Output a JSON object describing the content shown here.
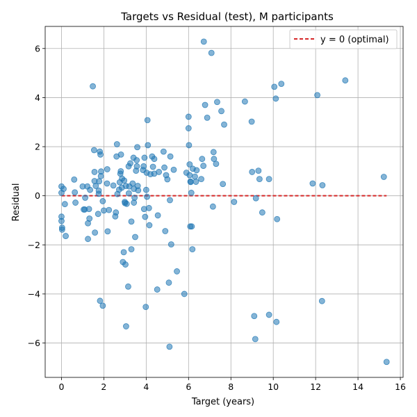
{
  "chart_data": {
    "type": "scatter",
    "title": "Targets vs Residual (test), M participants",
    "xlabel": "Target (years)",
    "ylabel": "Residual",
    "xlim": [
      -0.77,
      16.13
    ],
    "ylim": [
      -7.4,
      6.9
    ],
    "xticks": [
      0,
      2,
      4,
      6,
      8,
      10,
      12,
      14,
      16
    ],
    "yticks": [
      -6,
      -4,
      -2,
      0,
      2,
      4,
      6
    ],
    "grid": true,
    "legend": {
      "position": "top-right",
      "entries": [
        "y = 0 (optimal)"
      ]
    },
    "colors": {
      "points": "#1f77b4",
      "reference": "#d62728"
    },
    "reference_line": {
      "label": "y = 0 (optimal)",
      "y": 0,
      "x": [
        0,
        15.35
      ],
      "style": "dashed"
    },
    "series": [
      {
        "name": "residuals",
        "points": [
          [
            0.0,
            0.38
          ],
          [
            0.0,
            0.12
          ],
          [
            0.0,
            -0.85
          ],
          [
            0.0,
            -1.03
          ],
          [
            0.03,
            -1.3
          ],
          [
            0.03,
            -1.38
          ],
          [
            0.1,
            0.28
          ],
          [
            0.16,
            -0.34
          ],
          [
            0.2,
            -1.64
          ],
          [
            0.6,
            0.66
          ],
          [
            0.63,
            0.14
          ],
          [
            0.66,
            -0.28
          ],
          [
            1.0,
            0.38
          ],
          [
            1.05,
            -0.56
          ],
          [
            1.1,
            -0.56
          ],
          [
            1.12,
            -0.08
          ],
          [
            1.22,
            0.38
          ],
          [
            1.25,
            -1.12
          ],
          [
            1.25,
            -1.76
          ],
          [
            1.3,
            -0.54
          ],
          [
            1.32,
            -0.93
          ],
          [
            1.35,
            0.24
          ],
          [
            1.48,
            4.46
          ],
          [
            1.54,
            1.86
          ],
          [
            1.56,
            0.6
          ],
          [
            1.56,
            0.97
          ],
          [
            1.58,
            -1.5
          ],
          [
            1.62,
            0.4
          ],
          [
            1.73,
            -0.74
          ],
          [
            1.76,
            0.08
          ],
          [
            1.76,
            0.21
          ],
          [
            1.78,
            0.59
          ],
          [
            1.81,
            1.8
          ],
          [
            1.82,
            -4.28
          ],
          [
            1.84,
            1.68
          ],
          [
            1.86,
            0.8
          ],
          [
            1.87,
            0.99
          ],
          [
            1.95,
            -4.48
          ],
          [
            1.95,
            -0.22
          ],
          [
            2.0,
            -0.6
          ],
          [
            2.15,
            0.5
          ],
          [
            2.16,
            1.08
          ],
          [
            2.18,
            -1.45
          ],
          [
            2.24,
            -0.58
          ],
          [
            2.45,
            0.42
          ],
          [
            2.54,
            -0.84
          ],
          [
            2.57,
            -0.68
          ],
          [
            2.6,
            1.6
          ],
          [
            2.62,
            2.1
          ],
          [
            2.64,
            0.07
          ],
          [
            2.72,
            0.25
          ],
          [
            2.75,
            0.55
          ],
          [
            2.78,
            0.9
          ],
          [
            2.8,
            1.0
          ],
          [
            2.81,
            1.68
          ],
          [
            2.85,
            0.33
          ],
          [
            2.86,
            0.7
          ],
          [
            2.9,
            -2.7
          ],
          [
            2.94,
            -2.3
          ],
          [
            2.96,
            0.62
          ],
          [
            2.99,
            -0.25
          ],
          [
            3.0,
            -0.3
          ],
          [
            3.02,
            -2.8
          ],
          [
            3.04,
            0.4
          ],
          [
            3.05,
            -5.32
          ],
          [
            3.08,
            -0.33
          ],
          [
            3.15,
            -3.7
          ],
          [
            3.17,
            1.2
          ],
          [
            3.18,
            0.1
          ],
          [
            3.2,
            0.38
          ],
          [
            3.25,
            1.32
          ],
          [
            3.3,
            -1.05
          ],
          [
            3.3,
            -2.18
          ],
          [
            3.36,
            0.5
          ],
          [
            3.4,
            1.55
          ],
          [
            3.42,
            0.28
          ],
          [
            3.42,
            -0.28
          ],
          [
            3.45,
            -0.08
          ],
          [
            3.48,
            -1.68
          ],
          [
            3.52,
            1.02
          ],
          [
            3.55,
            1.45
          ],
          [
            3.56,
            1.2
          ],
          [
            3.58,
            1.98
          ],
          [
            3.6,
            0.4
          ],
          [
            3.62,
            0.22
          ],
          [
            3.85,
            1.05
          ],
          [
            3.88,
            1.2
          ],
          [
            3.9,
            -0.54
          ],
          [
            3.92,
            1.55
          ],
          [
            3.95,
            -0.86
          ],
          [
            3.98,
            -4.53
          ],
          [
            4.0,
            0.24
          ],
          [
            4.02,
            0.94
          ],
          [
            4.04,
            -0.04
          ],
          [
            4.06,
            3.08
          ],
          [
            4.08,
            2.06
          ],
          [
            4.13,
            -0.5
          ],
          [
            4.15,
            -1.2
          ],
          [
            4.2,
            0.88
          ],
          [
            4.28,
            1.6
          ],
          [
            4.32,
            1.18
          ],
          [
            4.38,
            1.5
          ],
          [
            4.38,
            0.9
          ],
          [
            4.52,
            -3.82
          ],
          [
            4.55,
            -0.8
          ],
          [
            4.6,
            0.97
          ],
          [
            4.82,
            1.8
          ],
          [
            4.86,
            1.15
          ],
          [
            4.9,
            -1.44
          ],
          [
            4.94,
            0.84
          ],
          [
            5.0,
            0.67
          ],
          [
            5.07,
            -3.54
          ],
          [
            5.1,
            -6.15
          ],
          [
            5.12,
            -0.18
          ],
          [
            5.14,
            1.6
          ],
          [
            5.18,
            -1.98
          ],
          [
            5.3,
            1.06
          ],
          [
            5.45,
            -3.08
          ],
          [
            5.8,
            -4.0
          ],
          [
            5.9,
            0.94
          ],
          [
            6.0,
            3.22
          ],
          [
            6.0,
            2.75
          ],
          [
            6.02,
            2.06
          ],
          [
            6.05,
            1.28
          ],
          [
            6.05,
            0.84
          ],
          [
            6.08,
            -1.25
          ],
          [
            6.09,
            0.58
          ],
          [
            6.1,
            0.56
          ],
          [
            6.13,
            0.12
          ],
          [
            6.15,
            -1.25
          ],
          [
            6.18,
            -2.18
          ],
          [
            6.2,
            1.1
          ],
          [
            6.3,
            0.78
          ],
          [
            6.35,
            0.57
          ],
          [
            6.38,
            1.04
          ],
          [
            6.6,
            0.68
          ],
          [
            6.64,
            1.5
          ],
          [
            6.7,
            1.22
          ],
          [
            6.72,
            6.28
          ],
          [
            6.78,
            3.7
          ],
          [
            6.88,
            3.18
          ],
          [
            7.08,
            5.82
          ],
          [
            7.15,
            -0.44
          ],
          [
            7.18,
            1.78
          ],
          [
            7.2,
            1.5
          ],
          [
            7.3,
            1.3
          ],
          [
            7.35,
            3.82
          ],
          [
            7.55,
            3.45
          ],
          [
            7.62,
            0.48
          ],
          [
            7.68,
            2.9
          ],
          [
            8.15,
            -0.25
          ],
          [
            8.66,
            3.84
          ],
          [
            8.98,
            3.02
          ],
          [
            9.0,
            0.97
          ],
          [
            9.1,
            -4.9
          ],
          [
            9.15,
            -5.84
          ],
          [
            9.18,
            -0.1
          ],
          [
            9.3,
            1.02
          ],
          [
            9.35,
            0.68
          ],
          [
            9.48,
            -0.68
          ],
          [
            9.8,
            0.68
          ],
          [
            9.8,
            -4.85
          ],
          [
            10.05,
            4.44
          ],
          [
            10.12,
            3.96
          ],
          [
            10.15,
            -5.14
          ],
          [
            10.18,
            -0.95
          ],
          [
            10.38,
            4.56
          ],
          [
            11.86,
            0.5
          ],
          [
            12.08,
            4.1
          ],
          [
            12.3,
            -4.29
          ],
          [
            12.32,
            0.43
          ],
          [
            13.4,
            4.7
          ],
          [
            15.22,
            0.77
          ],
          [
            15.35,
            -6.77
          ]
        ]
      }
    ]
  }
}
